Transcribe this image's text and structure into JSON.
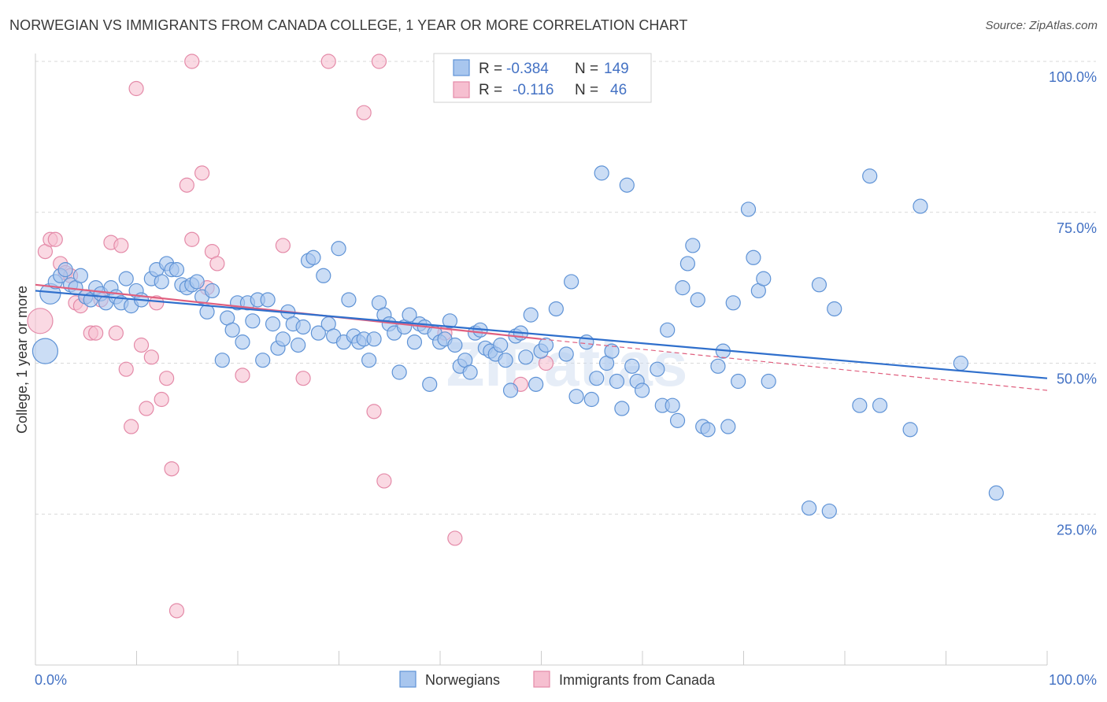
{
  "title": "NORWEGIAN VS IMMIGRANTS FROM CANADA COLLEGE, 1 YEAR OR MORE CORRELATION CHART",
  "source": "Source: ZipAtlas.com",
  "watermark": "ZIPatlas",
  "colors": {
    "blue_fill": "#a8c6ee",
    "blue_stroke": "#5f93d6",
    "blue_line": "#2f6fcc",
    "pink_fill": "#f6bfd0",
    "pink_stroke": "#e48aa8",
    "pink_line": "#e0607f",
    "axis_label": "#4472c4",
    "grid": "#d9d9d9"
  },
  "chart_data": {
    "type": "scatter",
    "ylabel": "College, 1 year or more",
    "xlim": [
      0,
      100
    ],
    "ylim": [
      0,
      100
    ],
    "x_tick_labels": [
      "0.0%",
      "100.0%"
    ],
    "y_tick_labels": [
      "25.0%",
      "50.0%",
      "75.0%",
      "100.0%"
    ],
    "y_ticks": [
      25,
      50,
      75,
      100
    ],
    "grid": "horizontal dashed",
    "legend_position": "top-center",
    "stats": [
      {
        "r_label": "R =",
        "r_value": "-0.384",
        "n_label": "N =",
        "n_value": "149"
      },
      {
        "r_label": "R =",
        "r_value": "-0.116",
        "n_label": "N =",
        "n_value": "46"
      }
    ],
    "series": [
      {
        "name": "Norwegians",
        "trend": {
          "x": [
            0,
            100
          ],
          "y": [
            62.0,
            47.5
          ]
        },
        "points": [
          [
            1,
            61.5
          ],
          [
            1.5,
            63.5
          ],
          [
            2,
            64.5
          ],
          [
            2.5,
            65.5
          ],
          [
            3,
            63
          ],
          [
            3.5,
            62.5
          ],
          [
            4,
            64.5
          ],
          [
            4.5,
            61
          ],
          [
            5,
            60.5
          ],
          [
            5.5,
            62.5
          ],
          [
            6,
            61.5
          ],
          [
            6.5,
            60
          ],
          [
            7,
            62.5
          ],
          [
            7.5,
            61
          ],
          [
            8,
            60
          ],
          [
            8.5,
            64
          ],
          [
            9,
            59.5
          ],
          [
            9.5,
            62
          ],
          [
            10,
            60.5
          ],
          [
            11,
            64
          ],
          [
            11.5,
            65.5
          ],
          [
            12,
            63.5
          ],
          [
            12.5,
            66.5
          ],
          [
            13,
            65.5
          ],
          [
            13.5,
            65.5
          ],
          [
            14,
            63
          ],
          [
            14.5,
            62.5
          ],
          [
            15,
            63
          ],
          [
            15.5,
            63.5
          ],
          [
            16,
            61
          ],
          [
            16.5,
            58.5
          ],
          [
            17,
            62
          ],
          [
            18,
            50.5
          ],
          [
            18.5,
            57.5
          ],
          [
            19,
            55.5
          ],
          [
            19.5,
            60
          ],
          [
            20,
            53.5
          ],
          [
            20.5,
            60
          ],
          [
            21,
            57
          ],
          [
            21.5,
            60.5
          ],
          [
            22,
            50.5
          ],
          [
            22.5,
            60.5
          ],
          [
            23,
            56.5
          ],
          [
            23.5,
            52.5
          ],
          [
            24,
            54
          ],
          [
            24.5,
            58.5
          ],
          [
            25,
            56.5
          ],
          [
            25.5,
            53
          ],
          [
            26,
            56
          ],
          [
            26.5,
            67
          ],
          [
            27,
            67.5
          ],
          [
            27.5,
            55
          ],
          [
            28,
            64.5
          ],
          [
            28.5,
            56.5
          ],
          [
            29,
            54.5
          ],
          [
            29.5,
            69
          ],
          [
            30,
            53.5
          ],
          [
            30.5,
            60.5
          ],
          [
            31,
            54.5
          ],
          [
            31.5,
            53.5
          ],
          [
            32,
            54
          ],
          [
            32.5,
            50.5
          ],
          [
            33,
            54
          ],
          [
            33.5,
            60
          ],
          [
            34,
            58
          ],
          [
            34.5,
            56.5
          ],
          [
            35,
            55
          ],
          [
            35.5,
            48.5
          ],
          [
            36,
            56
          ],
          [
            36.5,
            58
          ],
          [
            37,
            53.5
          ],
          [
            37.5,
            56.5
          ],
          [
            38,
            56
          ],
          [
            38.5,
            46.5
          ],
          [
            39,
            55
          ],
          [
            39.5,
            53.5
          ],
          [
            40,
            54
          ],
          [
            40.5,
            57
          ],
          [
            41,
            53
          ],
          [
            41.5,
            49.5
          ],
          [
            42,
            50.5
          ],
          [
            42.5,
            48.5
          ],
          [
            43,
            55
          ],
          [
            43.5,
            55.5
          ],
          [
            44,
            52.5
          ],
          [
            44.5,
            52
          ],
          [
            45,
            51.5
          ],
          [
            45.5,
            53
          ],
          [
            46,
            50.5
          ],
          [
            46.5,
            45.5
          ],
          [
            47,
            54.5
          ],
          [
            47.5,
            55
          ],
          [
            48,
            51
          ],
          [
            48.5,
            58
          ],
          [
            49,
            46.5
          ],
          [
            49.5,
            52
          ],
          [
            50,
            53
          ],
          [
            51,
            59
          ],
          [
            52,
            51.5
          ],
          [
            52.5,
            63.5
          ],
          [
            53,
            44.5
          ],
          [
            54,
            53.5
          ],
          [
            54.5,
            44
          ],
          [
            55,
            47.5
          ],
          [
            55.5,
            81.5
          ],
          [
            56,
            50
          ],
          [
            56.5,
            52
          ],
          [
            57,
            47
          ],
          [
            57.5,
            42.5
          ],
          [
            58,
            79.5
          ],
          [
            58.5,
            49.5
          ],
          [
            59,
            47
          ],
          [
            59.5,
            45.5
          ],
          [
            61,
            49
          ],
          [
            61.5,
            43
          ],
          [
            62,
            55.5
          ],
          [
            62.5,
            43
          ],
          [
            63,
            40.5
          ],
          [
            63.5,
            62.5
          ],
          [
            64,
            66.5
          ],
          [
            64.5,
            69.5
          ],
          [
            65,
            60.5
          ],
          [
            65.5,
            39.5
          ],
          [
            66,
            39
          ],
          [
            67,
            49.5
          ],
          [
            67.5,
            52
          ],
          [
            68,
            39.5
          ],
          [
            68.5,
            60
          ],
          [
            69,
            47
          ],
          [
            70,
            75.5
          ],
          [
            70.5,
            67.5
          ],
          [
            71,
            62
          ],
          [
            71.5,
            64
          ],
          [
            76,
            26
          ],
          [
            77,
            63
          ],
          [
            78,
            25.5
          ],
          [
            78.5,
            59
          ],
          [
            81,
            43
          ],
          [
            82,
            81
          ],
          [
            83,
            43
          ],
          [
            86,
            39
          ],
          [
            87,
            76
          ],
          [
            91,
            50
          ],
          [
            94.5,
            28.5
          ],
          [
            0.5,
            52
          ],
          [
            72,
            47
          ]
        ]
      },
      {
        "name": "Immigrants from Canada",
        "trend": {
          "x": [
            0,
            50
          ],
          "y": [
            63.0,
            54.0
          ]
        },
        "dashed_extension": {
          "x": [
            50,
            100
          ],
          "y": [
            54.0,
            45.5
          ]
        },
        "points": [
          [
            0,
            57
          ],
          [
            0.5,
            68.5
          ],
          [
            1,
            70.5
          ],
          [
            1.5,
            70.5
          ],
          [
            2,
            66.5
          ],
          [
            2.5,
            65
          ],
          [
            3,
            64.5
          ],
          [
            3.5,
            60
          ],
          [
            4,
            59.5
          ],
          [
            4.5,
            61
          ],
          [
            5,
            55
          ],
          [
            5.5,
            55
          ],
          [
            6,
            60.5
          ],
          [
            7,
            70
          ],
          [
            7.5,
            55
          ],
          [
            8,
            69.5
          ],
          [
            8.5,
            49
          ],
          [
            9,
            39.5
          ],
          [
            9.5,
            95.5
          ],
          [
            10,
            53
          ],
          [
            10.5,
            42.5
          ],
          [
            11,
            51
          ],
          [
            11.5,
            60
          ],
          [
            12,
            44
          ],
          [
            12.5,
            47.5
          ],
          [
            13,
            32.5
          ],
          [
            13.5,
            9
          ],
          [
            14.5,
            79.5
          ],
          [
            15,
            70.5
          ],
          [
            15,
            100
          ],
          [
            16,
            81.5
          ],
          [
            16.5,
            62.5
          ],
          [
            17,
            68.5
          ],
          [
            17.5,
            66.5
          ],
          [
            20,
            48
          ],
          [
            24,
            69.5
          ],
          [
            26,
            47.5
          ],
          [
            28.5,
            100
          ],
          [
            32,
            91.5
          ],
          [
            33,
            42
          ],
          [
            33.5,
            100
          ],
          [
            34,
            30.5
          ],
          [
            40,
            55
          ],
          [
            41,
            21
          ],
          [
            47.5,
            46.5
          ],
          [
            50,
            50
          ]
        ]
      }
    ]
  }
}
